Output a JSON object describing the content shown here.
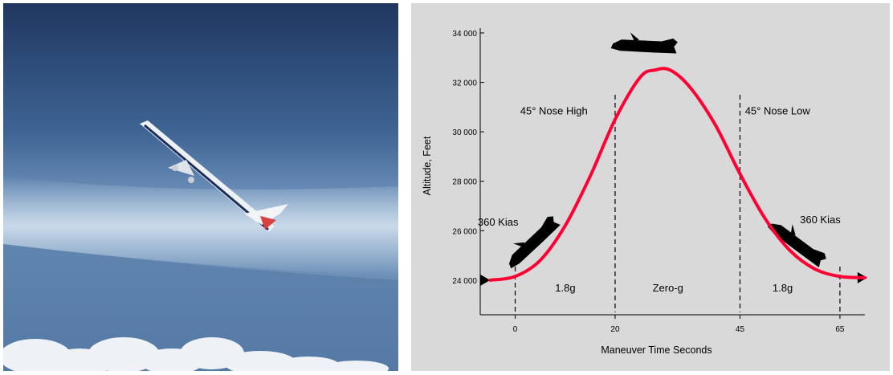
{
  "photo": {
    "subject": "aircraft in steep climb above clouds"
  },
  "chart_data": {
    "type": "line",
    "title": "",
    "xlabel": "Maneuver Time Seconds",
    "ylabel": "Altitude, Feet",
    "xlim": [
      -7,
      70
    ],
    "ylim": [
      22600,
      34000
    ],
    "x_ticks": [
      {
        "v": 0,
        "label": "0"
      },
      {
        "v": 20,
        "label": "20"
      },
      {
        "v": 45,
        "label": "45"
      },
      {
        "v": 65,
        "label": "65"
      }
    ],
    "y_ticks": [
      {
        "v": 24000,
        "label": "24 000"
      },
      {
        "v": 26000,
        "label": "26 000"
      },
      {
        "v": 28000,
        "label": "28 000"
      },
      {
        "v": 30000,
        "label": "30 000"
      },
      {
        "v": 32000,
        "label": "32 000"
      },
      {
        "v": 34000,
        "label": "34 000"
      }
    ],
    "vlines": [
      0,
      20,
      45,
      65
    ],
    "series": [
      {
        "color": "#ff0033",
        "x": [
          -5,
          0,
          5,
          10,
          15,
          20,
          25,
          28,
          31,
          35,
          40,
          45,
          50,
          55,
          60,
          65,
          70
        ],
        "y": [
          24000,
          24150,
          24800,
          26200,
          28200,
          30500,
          32200,
          32500,
          32500,
          31800,
          30300,
          28300,
          26500,
          25200,
          24450,
          24150,
          24100
        ]
      }
    ],
    "annotations": [
      {
        "text": "45° Nose High",
        "x": 1,
        "y": 30700
      },
      {
        "text": "45° Nose Low",
        "x": 46,
        "y": 30700
      },
      {
        "text": "360 Kias",
        "x": -7.5,
        "y": 26200
      },
      {
        "text": "360 Kias",
        "x": 57,
        "y": 26300
      },
      {
        "text": "1.8g",
        "x": 8,
        "y": 23550
      },
      {
        "text": "Zero-g",
        "x": 27.5,
        "y": 23550
      },
      {
        "text": "1.8g",
        "x": 51.5,
        "y": 23550
      }
    ],
    "planes": [
      {
        "name": "plane-silhouette-climb",
        "x": 3.5,
        "y": 25550,
        "rot": -40
      },
      {
        "name": "plane-silhouette-top",
        "x": 26,
        "y": 33500,
        "rot": 6
      },
      {
        "name": "plane-silhouette-dive",
        "x": 56.5,
        "y": 25500,
        "rot": 40
      }
    ],
    "arrows": [
      {
        "name": "entry-arrow",
        "x": -6,
        "y": 24000,
        "dir": "right"
      },
      {
        "name": "exit-arrow",
        "x": 69.5,
        "y": 24100,
        "dir": "right"
      }
    ],
    "grid": false,
    "legend": "none"
  }
}
